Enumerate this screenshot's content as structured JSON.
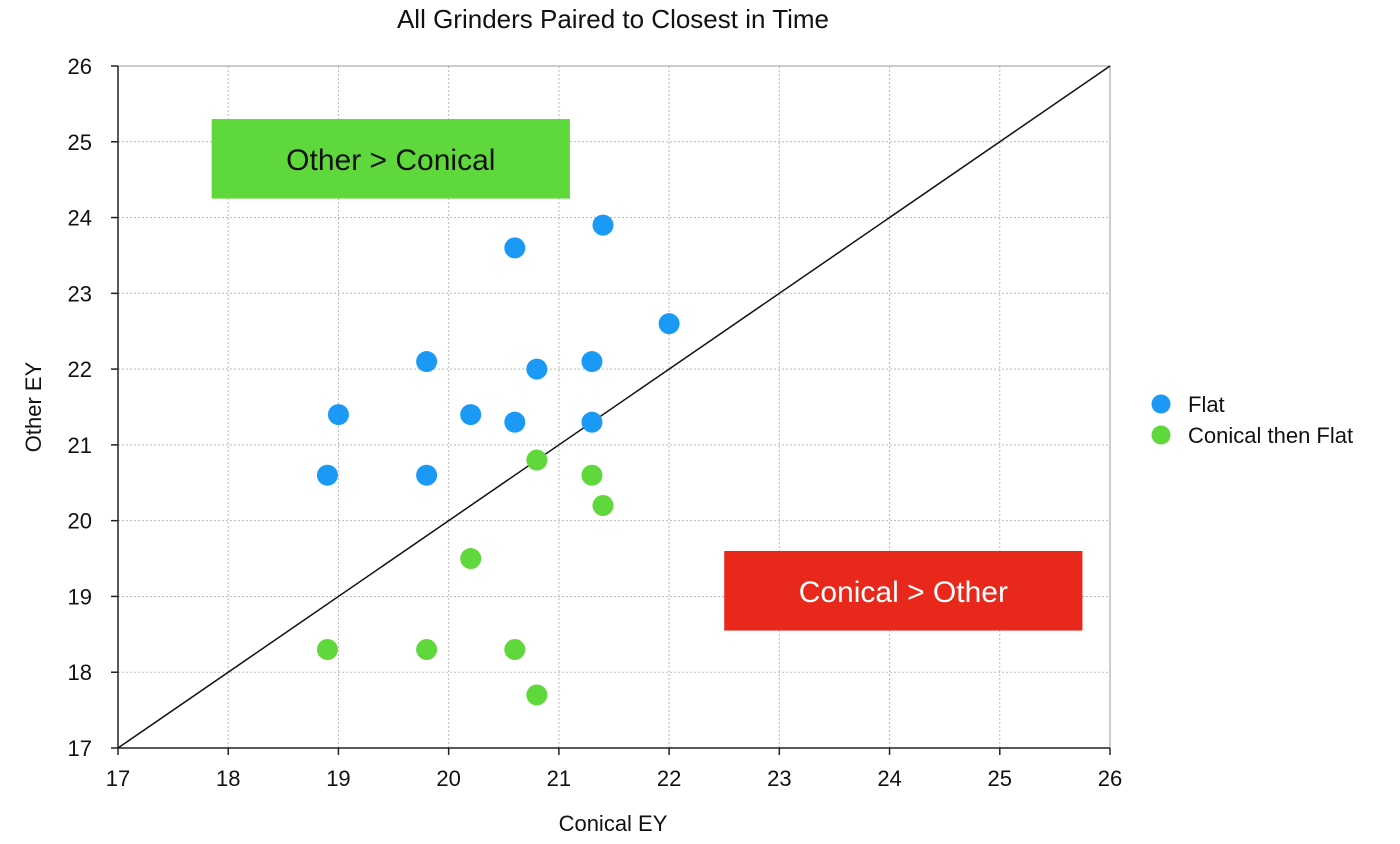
{
  "chart_data": {
    "type": "scatter",
    "title": "All Grinders Paired to Closest in Time",
    "xlabel": "Conical EY",
    "ylabel": "Other EY",
    "xlim": [
      17,
      26
    ],
    "ylim": [
      17,
      26
    ],
    "xticks": [
      "17",
      "18",
      "19",
      "20",
      "21",
      "22",
      "23",
      "24",
      "25",
      "26"
    ],
    "yticks": [
      "17",
      "18",
      "19",
      "20",
      "21",
      "22",
      "23",
      "24",
      "25",
      "26"
    ],
    "grid": true,
    "legend_position": "right",
    "reference_line": {
      "x": [
        17,
        26
      ],
      "y": [
        17,
        26
      ]
    },
    "series": [
      {
        "name": "Flat",
        "color": "#1a9af5",
        "points": [
          [
            21.4,
            23.9
          ],
          [
            20.6,
            23.6
          ],
          [
            22.0,
            22.6
          ],
          [
            19.8,
            22.1
          ],
          [
            21.3,
            22.1
          ],
          [
            20.8,
            22.0
          ],
          [
            19.0,
            21.4
          ],
          [
            20.2,
            21.4
          ],
          [
            20.6,
            21.3
          ],
          [
            21.3,
            21.3
          ],
          [
            18.9,
            20.6
          ],
          [
            19.8,
            20.6
          ]
        ]
      },
      {
        "name": "Conical then Flat",
        "color": "#5fd83c",
        "points": [
          [
            20.8,
            20.8
          ],
          [
            21.3,
            20.6
          ],
          [
            21.4,
            20.2
          ],
          [
            20.2,
            19.5
          ],
          [
            18.9,
            18.3
          ],
          [
            19.8,
            18.3
          ],
          [
            20.6,
            18.3
          ],
          [
            20.8,
            17.7
          ]
        ]
      }
    ],
    "annotations": [
      {
        "text": "Other > Conical",
        "background": "#5fd83c",
        "text_color": "#111111",
        "x_range": [
          17.85,
          21.1
        ],
        "y_range": [
          24.25,
          25.3
        ]
      },
      {
        "text": "Conical > Other",
        "background": "#e8281a",
        "text_color": "#ffffff",
        "x_range": [
          22.5,
          25.75
        ],
        "y_range": [
          18.55,
          19.6
        ]
      }
    ]
  }
}
